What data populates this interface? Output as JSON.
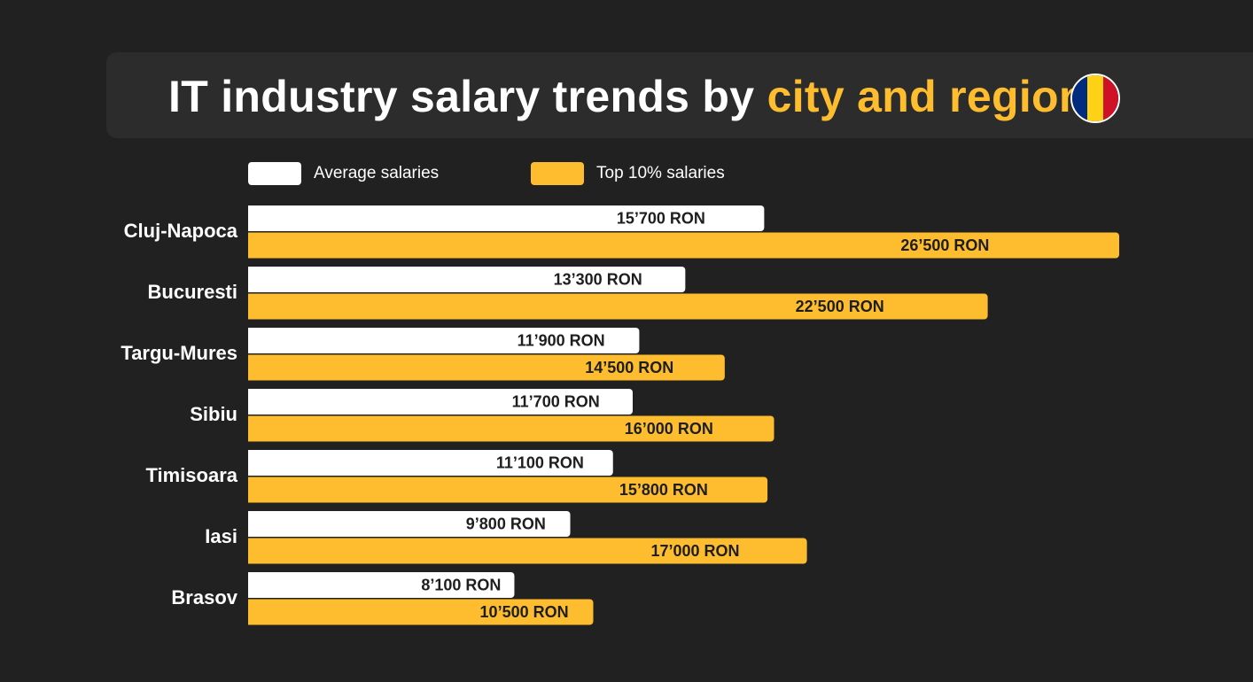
{
  "title": {
    "main": "IT industry salary trends by",
    "accent": "city and region"
  },
  "flag": {
    "colors": [
      "#002b7f",
      "#fcd116",
      "#ce1126"
    ]
  },
  "legend": [
    {
      "label": "Average salaries",
      "color": "#ffffff"
    },
    {
      "label": "Top 10% salaries",
      "color": "#fdbd2f"
    }
  ],
  "chart_data": {
    "type": "bar",
    "orientation": "horizontal",
    "categories": [
      "Cluj-Napoca",
      "Bucuresti",
      "Targu-Mures",
      "Sibiu",
      "Timisoara",
      "Iasi",
      "Brasov"
    ],
    "series": [
      {
        "name": "Average salaries",
        "color": "#ffffff",
        "values": [
          15700,
          13300,
          11900,
          11700,
          11100,
          9800,
          8100
        ],
        "labels": [
          "15’700 RON",
          "13’300 RON",
          "11’900 RON",
          "11’700 RON",
          "11’100 RON",
          "9’800 RON",
          "8’100 RON"
        ]
      },
      {
        "name": "Top 10% salaries",
        "color": "#fdbd2f",
        "values": [
          26500,
          22500,
          14500,
          16000,
          15800,
          17000,
          10500
        ],
        "labels": [
          "26’500 RON",
          "22’500 RON",
          "14’500 RON",
          "16’000 RON",
          "15’800 RON",
          "17’000 RON",
          "10’500 RON"
        ]
      }
    ],
    "grid": false,
    "legend_position": "top"
  }
}
